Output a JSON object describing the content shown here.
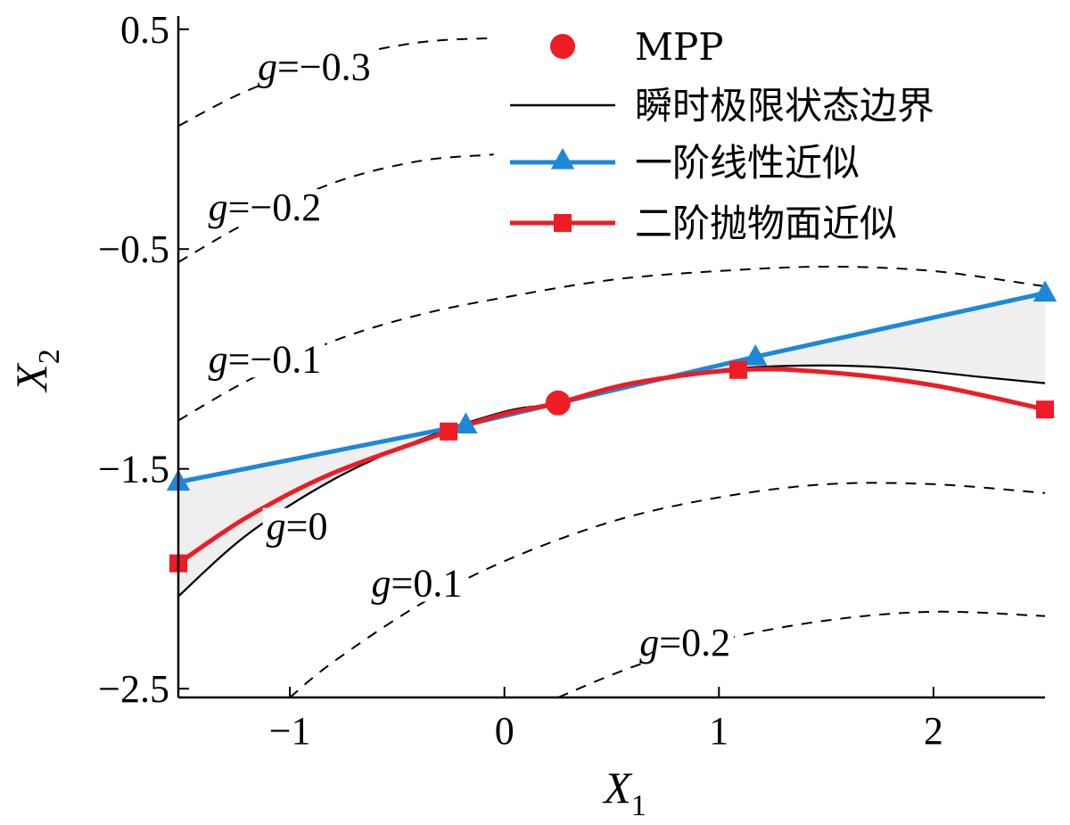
{
  "chart_data": {
    "type": "line",
    "xlabel": "X",
    "xlabel_sub": "1",
    "ylabel": "X",
    "ylabel_sub": "2",
    "xlim": [
      -1.52,
      2.52
    ],
    "ylim": [
      -2.54,
      0.56
    ],
    "x_ticks": [
      -1,
      0,
      1,
      2
    ],
    "y_ticks": [
      0.5,
      -0.5,
      -1.5,
      -2.5
    ],
    "x_tick_labels": [
      "−1",
      "0",
      "1",
      "2"
    ],
    "y_tick_labels": [
      "0.5",
      "−0.5",
      "−1.5",
      "−2.5"
    ],
    "grid": false,
    "legend_position": "top-right",
    "colors": {
      "mpp": "#ee1c24",
      "limit_state": "#000000",
      "first_order": "#1e88d8",
      "second_order": "#ee1c24",
      "contour": "#000000",
      "shade": "#efefef"
    },
    "series": [
      {
        "name": "MPP",
        "kind": "point",
        "marker": "circle",
        "x": [
          0.25
        ],
        "y": [
          -1.2
        ]
      },
      {
        "name": "瞬时极限状态边界",
        "kind": "line",
        "x": [
          -1.52,
          -1.2,
          -0.8,
          -0.4,
          0.0,
          0.25,
          0.6,
          1.0,
          1.4,
          1.8,
          2.2,
          2.52
        ],
        "y": [
          -2.08,
          -1.8,
          -1.55,
          -1.37,
          -1.24,
          -1.2,
          -1.11,
          -1.05,
          -1.03,
          -1.04,
          -1.08,
          -1.11
        ]
      },
      {
        "name": "一阶线性近似",
        "kind": "line",
        "marker": "triangle",
        "x": [
          -1.52,
          -0.18,
          1.17,
          2.52
        ],
        "y": [
          -1.56,
          -1.3,
          -0.99,
          -0.7
        ],
        "marker_x": [
          -1.52,
          -0.18,
          1.17,
          2.52
        ],
        "marker_y": [
          -1.56,
          -1.3,
          -0.99,
          -0.7
        ]
      },
      {
        "name": "二阶抛物面近似",
        "kind": "line",
        "marker": "square",
        "x": [
          -1.52,
          -1.2,
          -0.8,
          -0.26,
          0.0,
          0.25,
          0.6,
          1.09,
          1.5,
          2.0,
          2.52
        ],
        "y": [
          -1.93,
          -1.72,
          -1.52,
          -1.33,
          -1.25,
          -1.2,
          -1.11,
          -1.05,
          -1.06,
          -1.12,
          -1.23
        ],
        "marker_x": [
          -1.52,
          -0.26,
          1.09,
          2.52
        ],
        "marker_y": [
          -1.93,
          -1.33,
          -1.05,
          -1.23
        ]
      }
    ],
    "contours": [
      {
        "label": "g=−0.3",
        "x": [
          -1.52,
          -1.2,
          -0.8,
          -0.4,
          -0.05
        ],
        "y": [
          0.06,
          0.22,
          0.36,
          0.44,
          0.46
        ],
        "label_x": -1.15,
        "label_y": 0.27
      },
      {
        "label": "g=−0.2",
        "x": [
          -1.52,
          -1.2,
          -0.8,
          -0.4,
          -0.05
        ],
        "y": [
          -0.56,
          -0.38,
          -0.2,
          -0.1,
          -0.07
        ],
        "label_x": -1.38,
        "label_y": -0.37
      },
      {
        "label": "g=−0.1",
        "x": [
          -1.52,
          -1.2,
          -0.8,
          -0.4,
          0.0,
          0.5,
          1.0,
          1.5,
          2.0,
          2.52
        ],
        "y": [
          -1.28,
          -1.1,
          -0.92,
          -0.8,
          -0.72,
          -0.64,
          -0.6,
          -0.58,
          -0.6,
          -0.67
        ],
        "label_x": -1.38,
        "label_y": -1.06
      },
      {
        "label": "g=0.1",
        "x": [
          -1.0,
          -0.8,
          -0.4,
          0.0,
          0.5,
          1.0,
          1.5,
          2.0,
          2.52
        ],
        "y": [
          -2.54,
          -2.38,
          -2.12,
          -1.92,
          -1.74,
          -1.63,
          -1.57,
          -1.57,
          -1.61
        ],
        "label_x": -0.62,
        "label_y": -2.08
      },
      {
        "label": "g=0.2",
        "x": [
          0.25,
          0.6,
          1.0,
          1.5,
          2.0,
          2.52
        ],
        "y": [
          -2.54,
          -2.4,
          -2.28,
          -2.19,
          -2.15,
          -2.17
        ],
        "label_x": 0.63,
        "label_y": -2.35
      }
    ],
    "line_annotations": [
      {
        "label": "g=0",
        "label_x": -1.11,
        "label_y": -1.82
      }
    ]
  }
}
